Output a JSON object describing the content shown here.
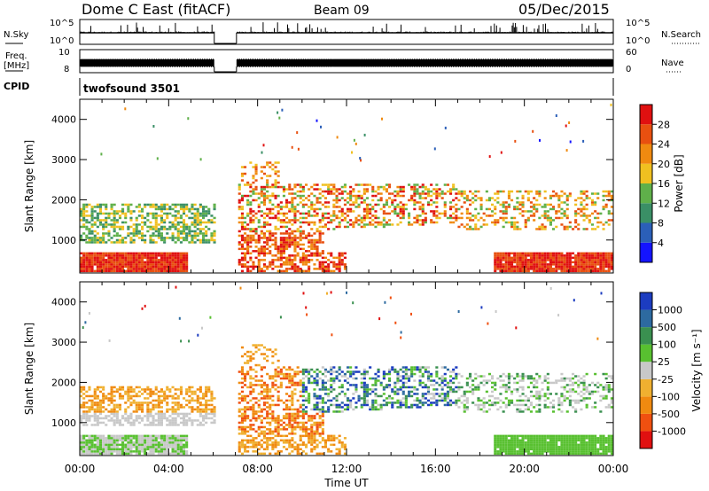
{
  "header": {
    "title": "Dome C East (fitACF)",
    "beam": "Beam 09",
    "date": "05/Dec/2015"
  },
  "strips": {
    "nsky": {
      "label": "N.Sky",
      "ticks": [
        "10^5",
        "10^0"
      ]
    },
    "nsearch": {
      "label": "N.Search",
      "ticks": [
        "10^5",
        "10^0"
      ]
    },
    "freq": {
      "label_line1": "Freq.",
      "label_line2": "[MHz]",
      "ticks": [
        "10",
        "8"
      ]
    },
    "nave": {
      "label": "Nave",
      "ticks": [
        "60",
        "0"
      ]
    },
    "cpid": {
      "label": "CPID",
      "value": "twofsound 3501"
    },
    "gap_hours": [
      6.05,
      7.05
    ]
  },
  "colors": {
    "power": [
      "#1414ff",
      "#2b5fb8",
      "#3a8f66",
      "#5fb04a",
      "#f0c020",
      "#f08a10",
      "#e85010",
      "#e01010"
    ],
    "velocity": [
      "#e01010",
      "#f05010",
      "#f08a10",
      "#f0b030",
      "#c8c8c8",
      "#c8c8c8",
      "#58c030",
      "#3a9050",
      "#2d6aa0",
      "#1c3cc0"
    ]
  },
  "chart_data": [
    {
      "type": "heatmap",
      "panel": "power",
      "ylabel": "Slant Range [km]",
      "xlim": [
        0,
        24
      ],
      "ylim": [
        180,
        4500
      ],
      "yticks": [
        1000,
        2000,
        3000,
        4000
      ],
      "colorbar": {
        "label": "Power [dB]",
        "ticks": [
          "4",
          "8",
          "12",
          "16",
          "20",
          "24",
          "28"
        ]
      }
    },
    {
      "type": "heatmap",
      "panel": "velocity",
      "ylabel": "Slant Range [km]",
      "xlabel": "Time UT",
      "xlim": [
        0,
        24
      ],
      "ylim": [
        180,
        4500
      ],
      "yticks": [
        1000,
        2000,
        3000,
        4000
      ],
      "xticks": [
        "00:00",
        "04:00",
        "08:00",
        "12:00",
        "16:00",
        "20:00",
        "00:00"
      ],
      "colorbar": {
        "label": "Velocity [m s⁻¹]",
        "ticks": [
          "-1000",
          "-500",
          "-100",
          "-25",
          "25",
          "100",
          "500",
          "1000"
        ]
      }
    }
  ]
}
